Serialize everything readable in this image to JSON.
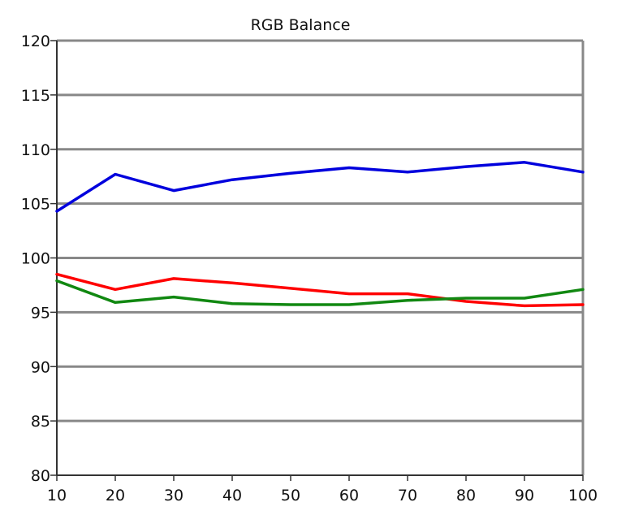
{
  "chart_data": {
    "type": "line",
    "title": "RGB Balance",
    "xlabel": "",
    "ylabel": "",
    "x": [
      10,
      20,
      30,
      40,
      50,
      60,
      70,
      80,
      90,
      100
    ],
    "xlim": [
      10,
      100
    ],
    "ylim": [
      80,
      120
    ],
    "x_ticks": [
      10,
      20,
      30,
      40,
      50,
      60,
      70,
      80,
      90,
      100
    ],
    "y_ticks": [
      80,
      85,
      90,
      95,
      100,
      105,
      110,
      115,
      120
    ],
    "grid": "horizontal",
    "legend": "none",
    "series": [
      {
        "color": "#0000dd",
        "values": [
          104.3,
          107.7,
          106.2,
          107.2,
          107.8,
          108.3,
          107.9,
          108.4,
          108.8,
          107.9
        ]
      },
      {
        "color": "#ff0000",
        "values": [
          98.5,
          97.1,
          98.1,
          97.7,
          97.2,
          96.7,
          96.7,
          96.0,
          95.6,
          95.7
        ]
      },
      {
        "color": "#118811",
        "values": [
          97.9,
          95.9,
          96.4,
          95.8,
          95.7,
          95.7,
          96.1,
          96.3,
          96.3,
          97.1
        ]
      }
    ]
  }
}
